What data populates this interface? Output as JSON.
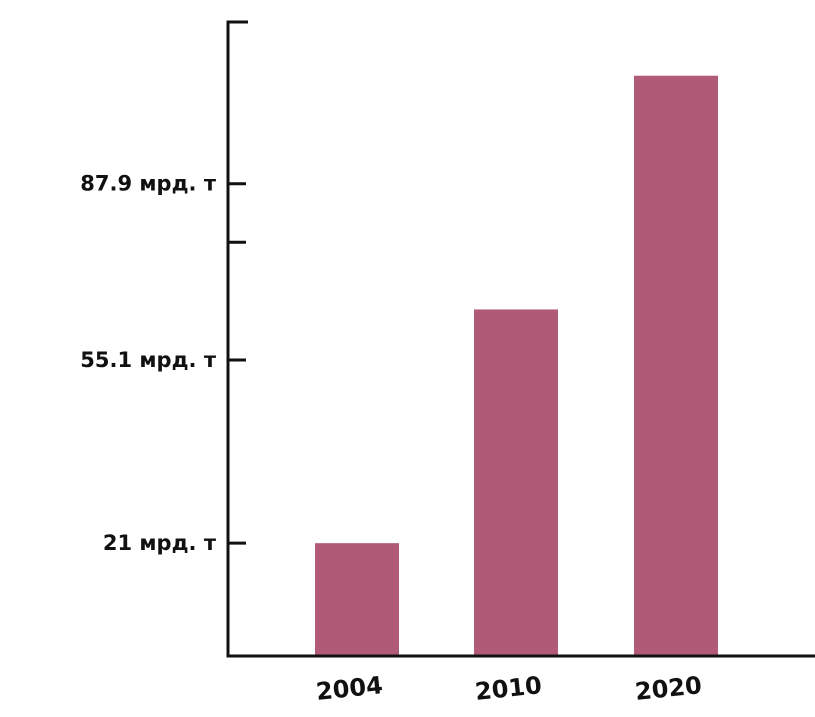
{
  "chart_data": {
    "type": "bar",
    "title": "",
    "xlabel": "",
    "ylabel": "",
    "categories": [
      "2004",
      "2010",
      "2020"
    ],
    "values": [
      21,
      64.5,
      108
    ],
    "ylim": [
      0,
      118
    ],
    "y_ticks": [
      {
        "value": 21,
        "label": "21 мрд. т"
      },
      {
        "value": 55.1,
        "label": "55.1 мрд. т"
      },
      {
        "value": 77,
        "label": ""
      },
      {
        "value": 87.9,
        "label": "87.9 мрд. т"
      }
    ],
    "grid": false,
    "legend": "none",
    "colors": {
      "bar": "#b05a78",
      "axis": "#111111",
      "text": "#111111"
    }
  }
}
